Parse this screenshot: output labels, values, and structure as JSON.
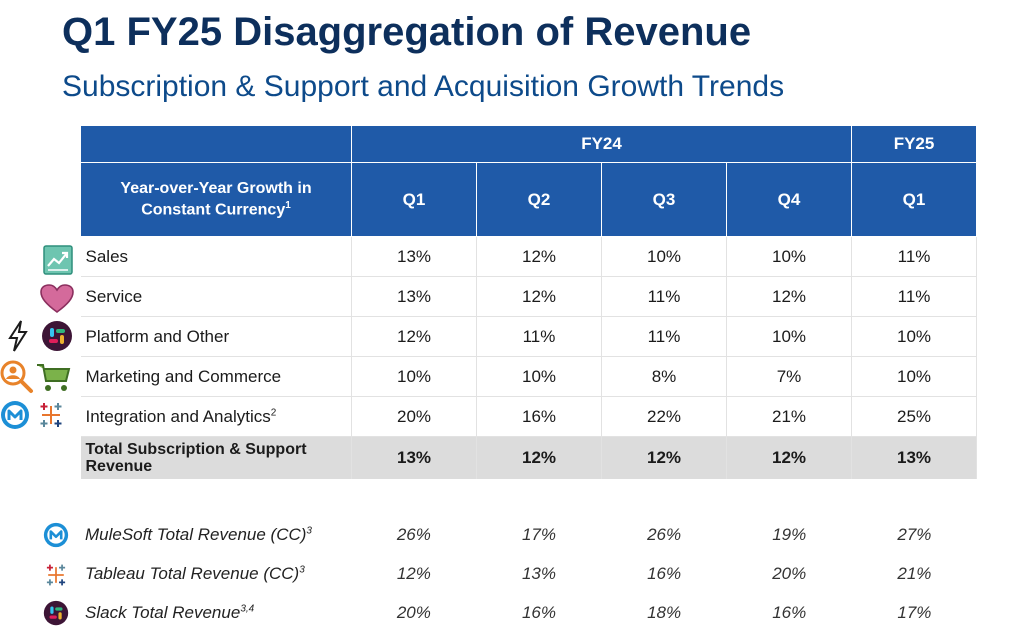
{
  "title": "Q1 FY25 Disaggregation of Revenue",
  "subtitle": "Subscription & Support and Acquisition Growth Trends",
  "colors": {
    "header_bg": "#1f5aa8",
    "title": "#0d2f5c",
    "subtitle": "#0d4a8a",
    "total_bg": "#dcdcdc"
  },
  "table": {
    "year_headers": [
      "FY24",
      "FY25"
    ],
    "metric_header": "Year-over-Year Growth in Constant Currency",
    "metric_header_sup": "1",
    "quarters": [
      "Q1",
      "Q2",
      "Q3",
      "Q4",
      "Q1"
    ],
    "rows": [
      {
        "name": "Sales",
        "sup": "",
        "values": [
          "13%",
          "12%",
          "10%",
          "10%",
          "11%"
        ]
      },
      {
        "name": "Service",
        "sup": "",
        "values": [
          "13%",
          "12%",
          "11%",
          "12%",
          "11%"
        ]
      },
      {
        "name": "Platform and Other",
        "sup": "",
        "values": [
          "12%",
          "11%",
          "11%",
          "10%",
          "10%"
        ]
      },
      {
        "name": "Marketing and Commerce",
        "sup": "",
        "values": [
          "10%",
          "10%",
          "8%",
          "7%",
          "10%"
        ]
      },
      {
        "name": "Integration and Analytics",
        "sup": "2",
        "values": [
          "20%",
          "16%",
          "22%",
          "21%",
          "25%"
        ]
      }
    ],
    "total": {
      "name": "Total Subscription & Support Revenue",
      "values": [
        "13%",
        "12%",
        "12%",
        "12%",
        "13%"
      ]
    }
  },
  "extra_rows": [
    {
      "name": "MuleSoft Total Revenue (CC)",
      "sup": "3",
      "values": [
        "26%",
        "17%",
        "26%",
        "19%",
        "27%"
      ]
    },
    {
      "name": "Tableau Total Revenue (CC)",
      "sup": "3",
      "values": [
        "12%",
        "13%",
        "16%",
        "20%",
        "21%"
      ]
    },
    {
      "name": "Slack Total Revenue",
      "sup": "3,4",
      "values": [
        "20%",
        "16%",
        "18%",
        "16%",
        "17%"
      ]
    }
  ],
  "icons": {
    "sales": "sales-chart-icon",
    "service": "heart-icon",
    "platform": [
      "lightning-icon",
      "slack-icon"
    ],
    "marketing": [
      "magnifier-person-icon",
      "cart-icon"
    ],
    "integration": [
      "mulesoft-icon",
      "tableau-icon"
    ],
    "mulesoft": "mulesoft-icon",
    "tableau": "tableau-icon",
    "slack": "slack-icon"
  }
}
